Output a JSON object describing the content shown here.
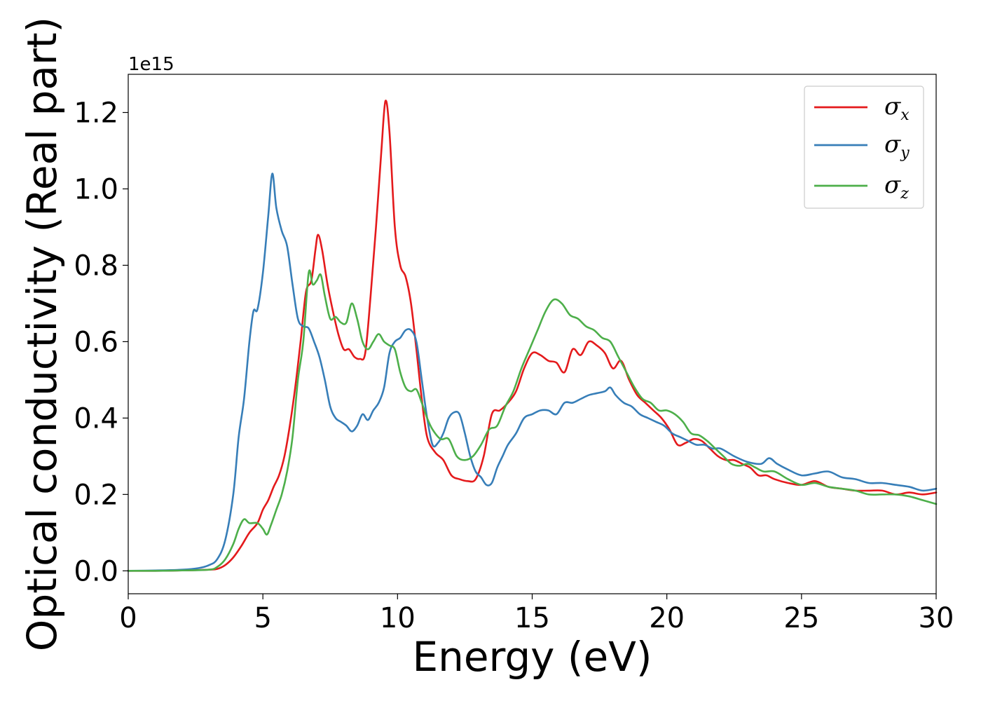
{
  "chart_data": {
    "type": "line",
    "title": "",
    "xlabel": "Energy (eV)",
    "ylabel": "Optical conductivity (Real part)",
    "y_multiplier": "1e15",
    "xlim": [
      0,
      30
    ],
    "ylim": [
      -0.06,
      1.3
    ],
    "xticks": [
      0,
      5,
      10,
      15,
      20,
      25,
      30
    ],
    "yticks": [
      0.0,
      0.2,
      0.4,
      0.6,
      0.8,
      1.0,
      1.2
    ],
    "xtick_labels": [
      "0",
      "5",
      "10",
      "15",
      "20",
      "25",
      "30"
    ],
    "ytick_labels": [
      "0.0",
      "0.2",
      "0.4",
      "0.6",
      "0.8",
      "1.0",
      "1.2"
    ],
    "grid": false,
    "legend_position": "top-right",
    "series": [
      {
        "name": "σ",
        "subscript": "x",
        "color": "#e41a1c",
        "points": [
          [
            0,
            0
          ],
          [
            1,
            0
          ],
          [
            2,
            0.001
          ],
          [
            3,
            0.003
          ],
          [
            3.3,
            0.005
          ],
          [
            3.6,
            0.015
          ],
          [
            3.9,
            0.035
          ],
          [
            4.2,
            0.065
          ],
          [
            4.5,
            0.1
          ],
          [
            4.8,
            0.125
          ],
          [
            5.0,
            0.16
          ],
          [
            5.2,
            0.185
          ],
          [
            5.4,
            0.22
          ],
          [
            5.6,
            0.25
          ],
          [
            5.8,
            0.3
          ],
          [
            6.0,
            0.38
          ],
          [
            6.2,
            0.48
          ],
          [
            6.4,
            0.6
          ],
          [
            6.6,
            0.73
          ],
          [
            6.8,
            0.76
          ],
          [
            6.95,
            0.84
          ],
          [
            7.05,
            0.88
          ],
          [
            7.2,
            0.84
          ],
          [
            7.4,
            0.75
          ],
          [
            7.6,
            0.68
          ],
          [
            7.8,
            0.62
          ],
          [
            8.0,
            0.58
          ],
          [
            8.2,
            0.58
          ],
          [
            8.4,
            0.56
          ],
          [
            8.6,
            0.555
          ],
          [
            8.8,
            0.57
          ],
          [
            9.0,
            0.72
          ],
          [
            9.2,
            0.9
          ],
          [
            9.4,
            1.1
          ],
          [
            9.55,
            1.23
          ],
          [
            9.7,
            1.15
          ],
          [
            9.9,
            0.9
          ],
          [
            10.1,
            0.8
          ],
          [
            10.3,
            0.77
          ],
          [
            10.5,
            0.7
          ],
          [
            10.7,
            0.58
          ],
          [
            10.9,
            0.45
          ],
          [
            11.1,
            0.35
          ],
          [
            11.4,
            0.31
          ],
          [
            11.7,
            0.29
          ],
          [
            12.0,
            0.25
          ],
          [
            12.3,
            0.24
          ],
          [
            12.6,
            0.235
          ],
          [
            12.9,
            0.24
          ],
          [
            13.2,
            0.3
          ],
          [
            13.5,
            0.41
          ],
          [
            13.8,
            0.42
          ],
          [
            14.1,
            0.44
          ],
          [
            14.4,
            0.47
          ],
          [
            14.7,
            0.53
          ],
          [
            15.0,
            0.57
          ],
          [
            15.3,
            0.565
          ],
          [
            15.6,
            0.55
          ],
          [
            15.9,
            0.545
          ],
          [
            16.2,
            0.52
          ],
          [
            16.5,
            0.58
          ],
          [
            16.8,
            0.565
          ],
          [
            17.1,
            0.6
          ],
          [
            17.4,
            0.59
          ],
          [
            17.7,
            0.57
          ],
          [
            18.0,
            0.53
          ],
          [
            18.3,
            0.55
          ],
          [
            18.6,
            0.5
          ],
          [
            18.9,
            0.46
          ],
          [
            19.2,
            0.44
          ],
          [
            19.5,
            0.42
          ],
          [
            19.8,
            0.4
          ],
          [
            20.1,
            0.37
          ],
          [
            20.4,
            0.33
          ],
          [
            20.7,
            0.335
          ],
          [
            21.0,
            0.345
          ],
          [
            21.3,
            0.34
          ],
          [
            21.6,
            0.32
          ],
          [
            21.9,
            0.3
          ],
          [
            22.2,
            0.29
          ],
          [
            22.5,
            0.29
          ],
          [
            22.8,
            0.28
          ],
          [
            23.1,
            0.27
          ],
          [
            23.4,
            0.25
          ],
          [
            23.7,
            0.25
          ],
          [
            24.0,
            0.24
          ],
          [
            24.5,
            0.23
          ],
          [
            25.0,
            0.225
          ],
          [
            25.5,
            0.235
          ],
          [
            26.0,
            0.22
          ],
          [
            26.5,
            0.215
          ],
          [
            27.0,
            0.21
          ],
          [
            27.5,
            0.21
          ],
          [
            28.0,
            0.21
          ],
          [
            28.5,
            0.2
          ],
          [
            29.0,
            0.205
          ],
          [
            29.5,
            0.2
          ],
          [
            30.0,
            0.205
          ]
        ]
      },
      {
        "name": "σ",
        "subscript": "y",
        "color": "#377eb8",
        "points": [
          [
            0,
            0
          ],
          [
            1,
            0.001
          ],
          [
            2,
            0.003
          ],
          [
            2.6,
            0.007
          ],
          [
            3.0,
            0.015
          ],
          [
            3.3,
            0.03
          ],
          [
            3.6,
            0.08
          ],
          [
            3.9,
            0.2
          ],
          [
            4.1,
            0.35
          ],
          [
            4.3,
            0.45
          ],
          [
            4.5,
            0.6
          ],
          [
            4.65,
            0.68
          ],
          [
            4.8,
            0.685
          ],
          [
            5.0,
            0.78
          ],
          [
            5.2,
            0.93
          ],
          [
            5.35,
            1.04
          ],
          [
            5.5,
            0.95
          ],
          [
            5.7,
            0.89
          ],
          [
            5.9,
            0.85
          ],
          [
            6.1,
            0.75
          ],
          [
            6.3,
            0.66
          ],
          [
            6.5,
            0.64
          ],
          [
            6.7,
            0.635
          ],
          [
            6.9,
            0.6
          ],
          [
            7.1,
            0.56
          ],
          [
            7.3,
            0.5
          ],
          [
            7.5,
            0.43
          ],
          [
            7.7,
            0.4
          ],
          [
            7.9,
            0.39
          ],
          [
            8.1,
            0.38
          ],
          [
            8.3,
            0.365
          ],
          [
            8.5,
            0.38
          ],
          [
            8.7,
            0.41
          ],
          [
            8.9,
            0.395
          ],
          [
            9.1,
            0.42
          ],
          [
            9.3,
            0.44
          ],
          [
            9.5,
            0.48
          ],
          [
            9.7,
            0.57
          ],
          [
            9.9,
            0.6
          ],
          [
            10.1,
            0.61
          ],
          [
            10.3,
            0.63
          ],
          [
            10.5,
            0.63
          ],
          [
            10.7,
            0.6
          ],
          [
            10.9,
            0.5
          ],
          [
            11.1,
            0.4
          ],
          [
            11.3,
            0.33
          ],
          [
            11.5,
            0.335
          ],
          [
            11.7,
            0.36
          ],
          [
            11.9,
            0.4
          ],
          [
            12.1,
            0.415
          ],
          [
            12.3,
            0.41
          ],
          [
            12.5,
            0.36
          ],
          [
            12.7,
            0.3
          ],
          [
            12.9,
            0.26
          ],
          [
            13.1,
            0.245
          ],
          [
            13.3,
            0.225
          ],
          [
            13.5,
            0.23
          ],
          [
            13.7,
            0.27
          ],
          [
            13.9,
            0.3
          ],
          [
            14.1,
            0.33
          ],
          [
            14.4,
            0.36
          ],
          [
            14.7,
            0.4
          ],
          [
            15.0,
            0.41
          ],
          [
            15.3,
            0.42
          ],
          [
            15.6,
            0.42
          ],
          [
            15.9,
            0.41
          ],
          [
            16.2,
            0.44
          ],
          [
            16.5,
            0.44
          ],
          [
            16.8,
            0.45
          ],
          [
            17.1,
            0.46
          ],
          [
            17.4,
            0.465
          ],
          [
            17.7,
            0.47
          ],
          [
            17.9,
            0.48
          ],
          [
            18.1,
            0.46
          ],
          [
            18.4,
            0.44
          ],
          [
            18.7,
            0.43
          ],
          [
            19.0,
            0.41
          ],
          [
            19.3,
            0.4
          ],
          [
            19.6,
            0.39
          ],
          [
            19.9,
            0.38
          ],
          [
            20.2,
            0.36
          ],
          [
            20.5,
            0.35
          ],
          [
            20.8,
            0.34
          ],
          [
            21.1,
            0.33
          ],
          [
            21.4,
            0.33
          ],
          [
            21.7,
            0.32
          ],
          [
            22.0,
            0.32
          ],
          [
            22.5,
            0.3
          ],
          [
            23.0,
            0.285
          ],
          [
            23.5,
            0.28
          ],
          [
            23.8,
            0.295
          ],
          [
            24.1,
            0.28
          ],
          [
            24.5,
            0.265
          ],
          [
            25.0,
            0.25
          ],
          [
            25.5,
            0.255
          ],
          [
            26.0,
            0.26
          ],
          [
            26.5,
            0.245
          ],
          [
            27.0,
            0.24
          ],
          [
            27.5,
            0.23
          ],
          [
            28.0,
            0.23
          ],
          [
            28.5,
            0.225
          ],
          [
            29.0,
            0.22
          ],
          [
            29.5,
            0.21
          ],
          [
            30.0,
            0.215
          ]
        ]
      },
      {
        "name": "σ",
        "subscript": "z",
        "color": "#4daf4a",
        "points": [
          [
            0,
            0
          ],
          [
            1,
            0
          ],
          [
            2,
            0.001
          ],
          [
            3,
            0.003
          ],
          [
            3.3,
            0.01
          ],
          [
            3.6,
            0.03
          ],
          [
            3.9,
            0.07
          ],
          [
            4.1,
            0.11
          ],
          [
            4.3,
            0.135
          ],
          [
            4.5,
            0.125
          ],
          [
            4.8,
            0.125
          ],
          [
            5.0,
            0.11
          ],
          [
            5.15,
            0.095
          ],
          [
            5.3,
            0.12
          ],
          [
            5.5,
            0.16
          ],
          [
            5.7,
            0.2
          ],
          [
            5.9,
            0.26
          ],
          [
            6.1,
            0.35
          ],
          [
            6.3,
            0.5
          ],
          [
            6.5,
            0.6
          ],
          [
            6.7,
            0.78
          ],
          [
            6.85,
            0.75
          ],
          [
            7.0,
            0.76
          ],
          [
            7.15,
            0.775
          ],
          [
            7.3,
            0.72
          ],
          [
            7.5,
            0.66
          ],
          [
            7.7,
            0.665
          ],
          [
            7.9,
            0.65
          ],
          [
            8.1,
            0.65
          ],
          [
            8.3,
            0.7
          ],
          [
            8.5,
            0.66
          ],
          [
            8.7,
            0.6
          ],
          [
            8.9,
            0.58
          ],
          [
            9.1,
            0.6
          ],
          [
            9.3,
            0.62
          ],
          [
            9.5,
            0.6
          ],
          [
            9.7,
            0.59
          ],
          [
            9.9,
            0.58
          ],
          [
            10.1,
            0.52
          ],
          [
            10.3,
            0.48
          ],
          [
            10.5,
            0.47
          ],
          [
            10.7,
            0.475
          ],
          [
            10.9,
            0.44
          ],
          [
            11.1,
            0.4
          ],
          [
            11.3,
            0.37
          ],
          [
            11.6,
            0.345
          ],
          [
            11.9,
            0.345
          ],
          [
            12.2,
            0.3
          ],
          [
            12.5,
            0.29
          ],
          [
            12.8,
            0.3
          ],
          [
            13.1,
            0.33
          ],
          [
            13.4,
            0.37
          ],
          [
            13.7,
            0.38
          ],
          [
            14.0,
            0.43
          ],
          [
            14.3,
            0.47
          ],
          [
            14.6,
            0.53
          ],
          [
            14.9,
            0.58
          ],
          [
            15.2,
            0.63
          ],
          [
            15.5,
            0.68
          ],
          [
            15.8,
            0.71
          ],
          [
            16.1,
            0.7
          ],
          [
            16.4,
            0.67
          ],
          [
            16.7,
            0.66
          ],
          [
            17.0,
            0.64
          ],
          [
            17.3,
            0.63
          ],
          [
            17.6,
            0.61
          ],
          [
            17.9,
            0.6
          ],
          [
            18.2,
            0.56
          ],
          [
            18.5,
            0.52
          ],
          [
            18.8,
            0.48
          ],
          [
            19.1,
            0.45
          ],
          [
            19.4,
            0.44
          ],
          [
            19.7,
            0.42
          ],
          [
            20.0,
            0.42
          ],
          [
            20.3,
            0.41
          ],
          [
            20.6,
            0.39
          ],
          [
            20.9,
            0.36
          ],
          [
            21.2,
            0.355
          ],
          [
            21.5,
            0.34
          ],
          [
            21.8,
            0.32
          ],
          [
            22.1,
            0.3
          ],
          [
            22.4,
            0.28
          ],
          [
            22.7,
            0.275
          ],
          [
            23.0,
            0.28
          ],
          [
            23.3,
            0.27
          ],
          [
            23.6,
            0.26
          ],
          [
            24.0,
            0.26
          ],
          [
            24.5,
            0.24
          ],
          [
            25.0,
            0.225
          ],
          [
            25.5,
            0.23
          ],
          [
            26.0,
            0.22
          ],
          [
            26.5,
            0.215
          ],
          [
            27.0,
            0.21
          ],
          [
            27.5,
            0.2
          ],
          [
            28.0,
            0.2
          ],
          [
            28.5,
            0.2
          ],
          [
            29.0,
            0.195
          ],
          [
            29.5,
            0.185
          ],
          [
            30.0,
            0.175
          ]
        ]
      }
    ]
  }
}
